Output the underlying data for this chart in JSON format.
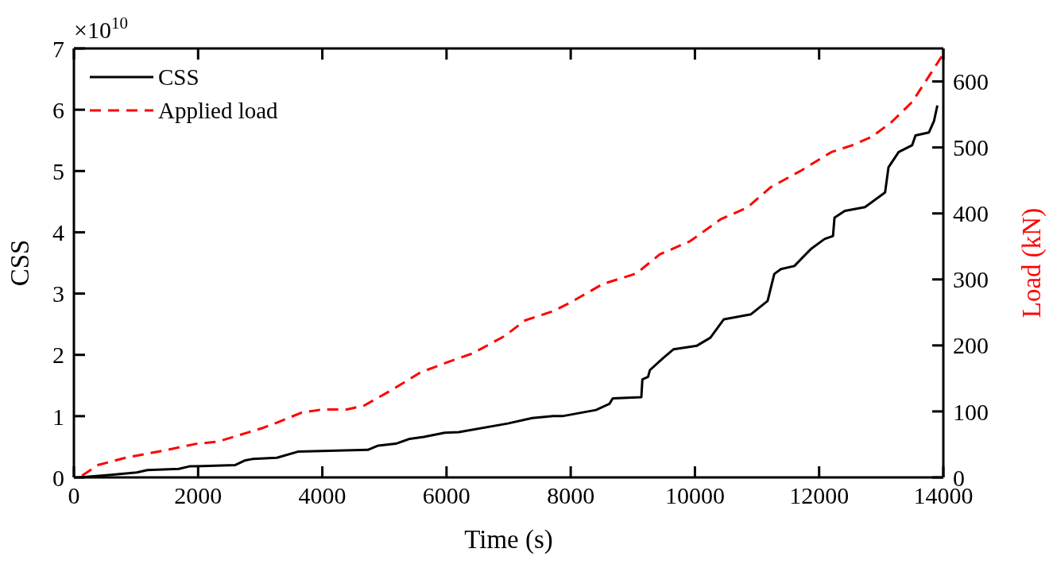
{
  "chart_data": {
    "type": "line",
    "xlabel": "Time (s)",
    "ylabel": "CSS",
    "y2label": "Load (kN)",
    "annotations": [
      "×10$^{10}$"
    ],
    "xlim": [
      0,
      14000
    ],
    "xticks": [
      0,
      2000,
      4000,
      6000,
      8000,
      10000,
      12000,
      14000
    ],
    "ylim": [
      0,
      7
    ],
    "yticks": [
      0,
      1,
      2,
      3,
      4,
      5,
      6,
      7
    ],
    "y2lim": [
      0,
      650
    ],
    "y2ticks": [
      0,
      100,
      200,
      300,
      400,
      500,
      600
    ],
    "grid": false,
    "legend": "top left",
    "marker": "none",
    "series": [
      {
        "name": "CSS",
        "color": "#000000",
        "line_style": "solid",
        "x": [
          85,
          563,
          1014,
          1183,
          1690,
          1859,
          2592,
          2761,
          2873,
          3268,
          3606,
          4732,
          4901,
          5183,
          5408,
          5634,
          5972,
          6197,
          6986,
          7380,
          7718,
          7866,
          8407,
          8623,
          8677,
          9137,
          9154,
          9246,
          9274,
          9490,
          9653,
          10033,
          10249,
          10466,
          10898,
          11170,
          11224,
          11278,
          11385,
          11601,
          11871,
          12087,
          12223,
          12248,
          12413,
          12738,
          13062,
          13117,
          13281,
          13497,
          13552,
          13769,
          13851,
          13904
        ],
        "values": [
          0,
          0.04,
          0.08,
          0.12,
          0.14,
          0.18,
          0.2,
          0.28,
          0.3,
          0.32,
          0.42,
          0.45,
          0.52,
          0.55,
          0.63,
          0.66,
          0.73,
          0.74,
          0.88,
          0.97,
          1.0,
          1.0,
          1.1,
          1.2,
          1.29,
          1.31,
          1.6,
          1.64,
          1.75,
          1.95,
          2.09,
          2.15,
          2.28,
          2.58,
          2.66,
          2.88,
          3.1,
          3.32,
          3.4,
          3.45,
          3.73,
          3.89,
          3.94,
          4.24,
          4.35,
          4.41,
          4.65,
          5.06,
          5.31,
          5.42,
          5.58,
          5.63,
          5.82,
          6.07
        ]
      },
      {
        "name": "Applied load",
        "color": "#ff0000",
        "line_style": "dashed",
        "axis": "y2",
        "x": [
          85,
          394,
          845,
          1465,
          1972,
          2310,
          2592,
          3042,
          3268,
          3662,
          4000,
          4394,
          4676,
          5127,
          5577,
          6028,
          6423,
          6930,
          7268,
          7718,
          7975,
          8515,
          9057,
          9434,
          9923,
          10411,
          10844,
          11224,
          11711,
          12198,
          12524,
          12848,
          13172,
          13499,
          13769,
          13974
        ],
        "values": [
          0,
          19,
          30,
          41,
          51,
          54,
          62,
          75,
          83,
          98,
          103,
          103,
          109,
          133,
          159,
          175,
          188,
          214,
          238,
          252,
          264,
          293,
          309,
          338,
          358,
          391,
          409,
          440,
          465,
          493,
          503,
          516,
          539,
          569,
          608,
          638
        ]
      }
    ]
  }
}
